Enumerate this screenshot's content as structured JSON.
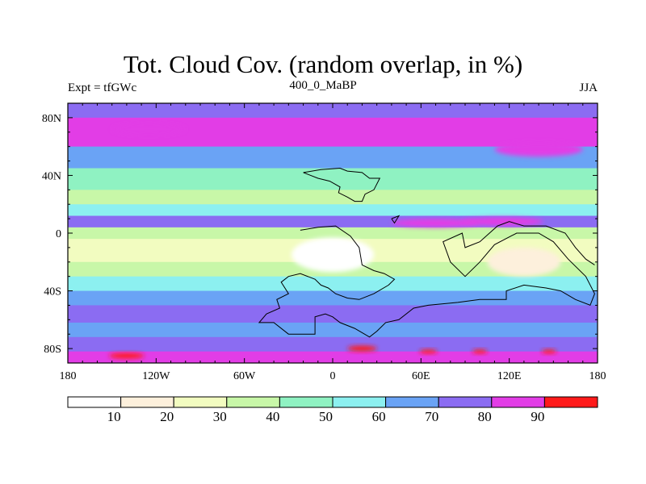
{
  "map": {
    "title": "Tot. Cloud Cov. (random overlap, in %)",
    "left_label": "Expt = tfGWc",
    "center_label": "400_0_MaBP",
    "right_label": "JJA",
    "lon_ticks": [
      "180",
      "120W",
      "60W",
      "0",
      "60E",
      "120E",
      "180"
    ],
    "lat_ticks": [
      "80N",
      "40N",
      "0",
      "40S",
      "80S"
    ]
  },
  "colorbar": {
    "labels": [
      "10",
      "20",
      "30",
      "40",
      "50",
      "60",
      "70",
      "80",
      "90"
    ],
    "levels": [
      10,
      20,
      30,
      40,
      50,
      60,
      70,
      80,
      90
    ],
    "colors": [
      "#ffffff",
      "#fdf0dc",
      "#f2fcc0",
      "#c8f7a8",
      "#8ff2c2",
      "#8cf0f0",
      "#6aa3f5",
      "#8b6cf2",
      "#e23de6",
      "#ff1a1a"
    ]
  },
  "chart_data": {
    "type": "heatmap",
    "title": "Tot. Cloud Cov. (random overlap, in %)",
    "subtitle": "400_0_MaBP",
    "xlim": [
      -180,
      180
    ],
    "ylim": [
      -90,
      90
    ],
    "bands": [
      {
        "lat": [
          80,
          90
        ],
        "value": 75
      },
      {
        "lat": [
          60,
          80
        ],
        "value": 85
      },
      {
        "lat": [
          45,
          60
        ],
        "value": 65
      },
      {
        "lat": [
          30,
          45
        ],
        "value": 45
      },
      {
        "lat": [
          20,
          30
        ],
        "value": 35
      },
      {
        "lat": [
          12,
          20
        ],
        "value": 55
      },
      {
        "lat": [
          4,
          12
        ],
        "value": 75
      },
      {
        "lat": [
          -4,
          4
        ],
        "value": 35
      },
      {
        "lat": [
          -20,
          -4
        ],
        "value": 20
      },
      {
        "lat": [
          -30,
          -20
        ],
        "value": 35
      },
      {
        "lat": [
          -40,
          -30
        ],
        "value": 50
      },
      {
        "lat": [
          -50,
          -40
        ],
        "value": 65
      },
      {
        "lat": [
          -62,
          -50
        ],
        "value": 75
      },
      {
        "lat": [
          -72,
          -62
        ],
        "value": 65
      },
      {
        "lat": [
          -82,
          -72
        ],
        "value": 75
      },
      {
        "lat": [
          -90,
          -82
        ],
        "value": 85
      }
    ],
    "blobs": [
      {
        "lon": 0,
        "lat": -15,
        "rx": 28,
        "ry": 12,
        "value": 5
      },
      {
        "lon": 130,
        "lat": -20,
        "rx": 25,
        "ry": 10,
        "value": 15
      },
      {
        "lon": 70,
        "lat": 7,
        "rx": 30,
        "ry": 3,
        "value": 85
      },
      {
        "lon": 115,
        "lat": 8,
        "rx": 28,
        "ry": 3,
        "value": 85
      },
      {
        "lon": 140,
        "lat": 58,
        "rx": 30,
        "ry": 5,
        "value": 85
      },
      {
        "lon": -125,
        "lat": 72,
        "rx": 25,
        "ry": 4,
        "value": 85
      },
      {
        "lon": -140,
        "lat": -85,
        "rx": 12,
        "ry": 2,
        "value": 95
      },
      {
        "lon": 65,
        "lat": -82,
        "rx": 6,
        "ry": 1.5,
        "value": 95
      },
      {
        "lon": 100,
        "lat": -82,
        "rx": 5,
        "ry": 1.5,
        "value": 95
      },
      {
        "lon": 147,
        "lat": -82,
        "rx": 5,
        "ry": 1.5,
        "value": 95
      },
      {
        "lon": 20,
        "lat": -80,
        "rx": 10,
        "ry": 2,
        "value": 95
      }
    ],
    "coastlines": [
      [
        [
          -20,
          42
        ],
        [
          -8,
          44
        ],
        [
          5,
          45
        ],
        [
          10,
          43
        ],
        [
          20,
          42
        ],
        [
          25,
          38
        ],
        [
          32,
          38
        ],
        [
          28,
          30
        ],
        [
          22,
          27
        ],
        [
          20,
          22
        ],
        [
          15,
          22
        ],
        [
          10,
          25
        ],
        [
          4,
          28
        ],
        [
          5,
          32
        ],
        [
          -2,
          36
        ],
        [
          -10,
          38
        ],
        [
          -20,
          42
        ]
      ],
      [
        [
          40,
          10
        ],
        [
          45,
          12
        ],
        [
          42,
          7
        ],
        [
          40,
          10
        ]
      ],
      [
        [
          -22,
          2
        ],
        [
          -10,
          4
        ],
        [
          2,
          5
        ],
        [
          12,
          -2
        ],
        [
          18,
          -10
        ],
        [
          20,
          -22
        ],
        [
          28,
          -26
        ],
        [
          35,
          -28
        ],
        [
          42,
          -32
        ],
        [
          38,
          -36
        ],
        [
          28,
          -42
        ],
        [
          18,
          -46
        ],
        [
          10,
          -45
        ],
        [
          2,
          -42
        ],
        [
          -3,
          -38
        ],
        [
          -8,
          -36
        ],
        [
          -12,
          -32
        ],
        [
          -22,
          -28
        ],
        [
          -30,
          -30
        ],
        [
          -35,
          -34
        ],
        [
          -30,
          -42
        ],
        [
          -38,
          -46
        ],
        [
          -36,
          -52
        ],
        [
          -45,
          -56
        ],
        [
          -50,
          -62
        ],
        [
          -40,
          -62
        ],
        [
          -30,
          -70
        ],
        [
          -12,
          -70
        ],
        [
          -12,
          -58
        ],
        [
          -5,
          -56
        ],
        [
          0,
          -58
        ],
        [
          5,
          -62
        ],
        [
          15,
          -66
        ],
        [
          25,
          -72
        ],
        [
          30,
          -68
        ],
        [
          36,
          -62
        ],
        [
          45,
          -60
        ],
        [
          55,
          -52
        ],
        [
          65,
          -50
        ],
        [
          85,
          -48
        ],
        [
          100,
          -46
        ],
        [
          118,
          -46
        ],
        [
          118,
          -40
        ],
        [
          130,
          -36
        ],
        [
          145,
          -38
        ],
        [
          155,
          -40
        ],
        [
          165,
          -46
        ],
        [
          175,
          -50
        ],
        [
          178,
          -42
        ],
        [
          172,
          -30
        ],
        [
          160,
          -18
        ],
        [
          150,
          -6
        ],
        [
          140,
          0
        ],
        [
          125,
          0
        ],
        [
          110,
          -8
        ],
        [
          100,
          -20
        ],
        [
          90,
          -30
        ],
        [
          80,
          -20
        ],
        [
          75,
          -6
        ],
        [
          88,
          0
        ],
        [
          90,
          -10
        ],
        [
          100,
          -6
        ],
        [
          112,
          5
        ],
        [
          120,
          8
        ],
        [
          130,
          5
        ],
        [
          145,
          5
        ],
        [
          158,
          0
        ],
        [
          165,
          -10
        ],
        [
          172,
          -18
        ],
        [
          178,
          -22
        ]
      ]
    ]
  }
}
